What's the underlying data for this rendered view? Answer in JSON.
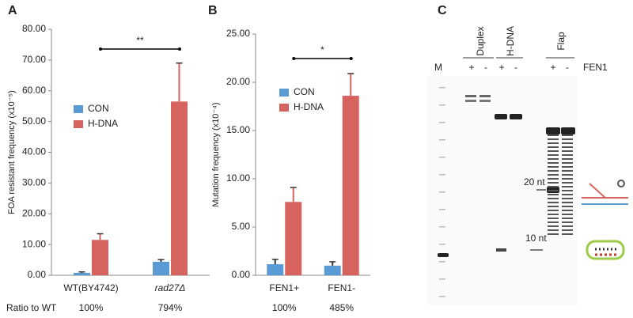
{
  "chart_data": [
    {
      "type": "bar",
      "panel": "A",
      "ylabel": "FOA resistant frequency (x10⁻⁵)",
      "categories": [
        "WT(BY4742)",
        "rad27Δ"
      ],
      "series": [
        {
          "name": "CON",
          "color": "#5b9bd5",
          "values": [
            0.8,
            4.4
          ],
          "errors": [
            0.3,
            0.7
          ]
        },
        {
          "name": "H-DNA",
          "color": "#d6635d",
          "values": [
            11.5,
            56.5
          ],
          "errors": [
            2.0,
            12.5
          ]
        }
      ],
      "ylim": [
        0,
        80
      ],
      "yticks": [
        {
          "value": 0,
          "label": "0.00"
        },
        {
          "value": 10,
          "label": "10.00"
        },
        {
          "value": 20,
          "label": "20.00"
        },
        {
          "value": 30,
          "label": "30.00"
        },
        {
          "value": 40,
          "label": "40.00"
        },
        {
          "value": 50,
          "label": "50.00"
        },
        {
          "value": 60,
          "label": "60.00"
        },
        {
          "value": 70,
          "label": "70.00"
        },
        {
          "value": 80,
          "label": "80.00"
        }
      ],
      "legend": "upper left",
      "significance": "**",
      "ratio_label": "Ratio to WT",
      "ratios": [
        "100%",
        "794%"
      ]
    },
    {
      "type": "bar",
      "panel": "B",
      "ylabel": "Mutation frequency (x10⁻⁴)",
      "categories": [
        "FEN1+",
        "FEN1-"
      ],
      "series": [
        {
          "name": "CON",
          "color": "#5b9bd5",
          "values": [
            1.15,
            1.0
          ],
          "errors": [
            0.5,
            0.4
          ]
        },
        {
          "name": "H-DNA",
          "color": "#d6635d",
          "values": [
            7.6,
            18.6
          ],
          "errors": [
            1.5,
            2.3
          ]
        }
      ],
      "ylim": [
        0,
        25
      ],
      "yticks": [
        {
          "value": 0,
          "label": "0.00"
        },
        {
          "value": 5,
          "label": "5.00"
        },
        {
          "value": 10,
          "label": "10.00"
        },
        {
          "value": 15,
          "label": "15.00"
        },
        {
          "value": 20,
          "label": "20.00"
        },
        {
          "value": 25,
          "label": "25.00"
        }
      ],
      "legend": "upper left",
      "significance": "*",
      "ratios": [
        "100%",
        "485%"
      ]
    }
  ],
  "gel": {
    "panel": "C",
    "marker": "M",
    "groups": [
      "Duplex",
      "H-DNA",
      "Flap"
    ],
    "lanes": [
      "+",
      "-",
      "+",
      "-",
      "+",
      "-"
    ],
    "enzyme": "FEN1",
    "arrows": [
      "20 nt",
      "10 nt"
    ]
  }
}
